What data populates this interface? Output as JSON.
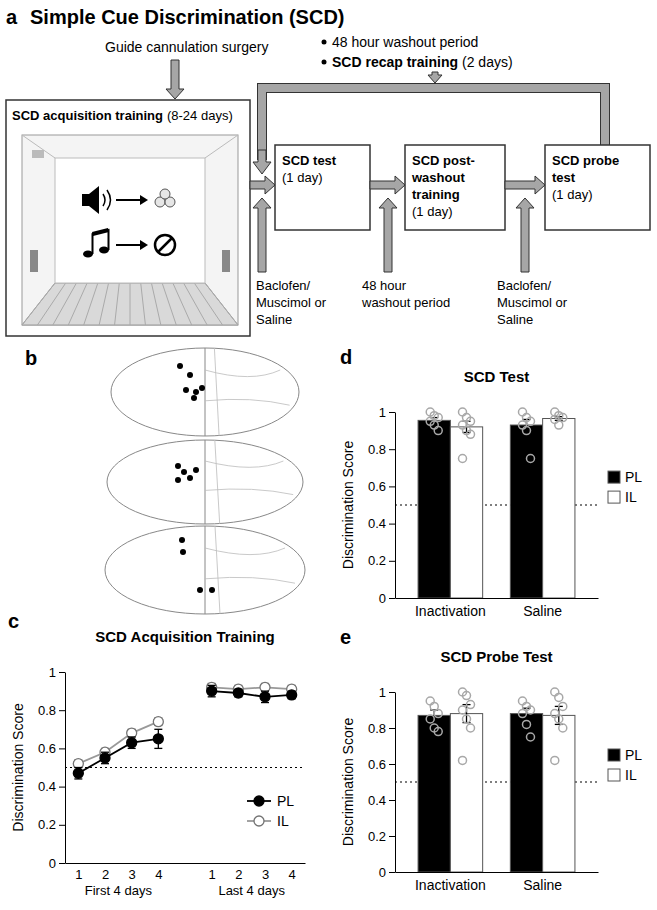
{
  "figure": {
    "panel_a": {
      "label": "a",
      "title": "Simple Cue Discrimination (SCD)",
      "surgery": "Guide cannulation surgery",
      "washout_note": "48 hour washout period",
      "recap_note": {
        "title": "SCD recap training",
        "detail": "(2 days)"
      },
      "boxes": [
        {
          "title": [
            "SCD acquisition training"
          ],
          "detail": "(8-24 days)"
        },
        {
          "title": [
            "SCD test"
          ],
          "detail": "(1 day)"
        },
        {
          "title": [
            "SCD post-",
            "washout",
            "training"
          ],
          "detail": "(1 day)"
        },
        {
          "title": [
            "SCD probe",
            "test"
          ],
          "detail": "(1 day)"
        }
      ],
      "inputs": [
        [
          "Baclofen/",
          "Muscimol or",
          "Saline"
        ],
        [
          "48 hour",
          "washout period"
        ],
        [
          "Baclofen/",
          "Muscimol or",
          "Saline"
        ]
      ]
    },
    "panel_b": {
      "label": "b"
    }
  },
  "chart_data": [
    {
      "type": "line",
      "panel_label": "c",
      "title": "SCD Acquisition Training",
      "ylabel": "Discrimination Score",
      "categories": [
        "1",
        "2",
        "3",
        "4",
        null,
        "1",
        "2",
        "3",
        "4"
      ],
      "x_groups": [
        "First 4 days",
        "Last 4 days"
      ],
      "series": [
        {
          "name": "PL",
          "color": "#000000",
          "marker": "circle",
          "values": [
            0.47,
            0.55,
            0.63,
            0.65,
            null,
            0.9,
            0.89,
            0.87,
            0.88
          ],
          "errors": [
            0.03,
            0.03,
            0.03,
            0.05,
            null,
            0.03,
            0.02,
            0.03,
            0.02
          ]
        },
        {
          "name": "IL",
          "color": "#999999",
          "marker": "circle-open",
          "values": [
            0.52,
            0.58,
            0.68,
            0.74,
            null,
            0.92,
            0.91,
            0.92,
            0.91
          ],
          "errors": [
            0.02,
            0.02,
            0.02,
            0.02,
            null,
            0.02,
            0.02,
            0.02,
            0.02
          ]
        }
      ],
      "ylim": [
        0,
        1
      ],
      "yticks": [
        0,
        0.2,
        0.4,
        0.6,
        0.8,
        1
      ],
      "hline": 0.5,
      "legend": "lower right"
    },
    {
      "type": "bar",
      "panel_label": "d",
      "title": "SCD Test",
      "ylabel": "Discrimination Score",
      "categories": [
        "Inactivation",
        "Saline"
      ],
      "series": [
        {
          "name": "PL",
          "color": "#000000",
          "values": [
            0.955,
            0.93
          ],
          "errors": [
            0.015,
            0.03
          ],
          "points": [
            [
              1.0,
              0.98,
              0.97,
              0.95,
              0.93,
              0.9
            ],
            [
              1.0,
              0.97,
              0.95,
              0.93,
              0.9,
              0.75
            ]
          ]
        },
        {
          "name": "IL",
          "color": "#ffffff",
          "values": [
            0.92,
            0.965
          ],
          "errors": [
            0.03,
            0.01
          ],
          "points": [
            [
              1.0,
              0.97,
              0.95,
              0.93,
              0.9,
              0.88,
              0.75
            ],
            [
              1.0,
              0.98,
              0.97,
              0.96,
              0.93
            ]
          ]
        }
      ],
      "ylim": [
        0,
        1
      ],
      "yticks": [
        0,
        0.2,
        0.4,
        0.6,
        0.8,
        1
      ],
      "hline": 0.5,
      "legend": "right"
    },
    {
      "type": "bar",
      "panel_label": "e",
      "title": "SCD Probe Test",
      "ylabel": "Discrimination Score",
      "categories": [
        "Inactivation",
        "Saline"
      ],
      "series": [
        {
          "name": "PL",
          "color": "#000000",
          "values": [
            0.87,
            0.88
          ],
          "errors": [
            0.03,
            0.03
          ],
          "points": [
            [
              0.95,
              0.92,
              0.88,
              0.85,
              0.8,
              0.78
            ],
            [
              0.95,
              0.92,
              0.9,
              0.88,
              0.82,
              0.75
            ]
          ]
        },
        {
          "name": "IL",
          "color": "#ffffff",
          "values": [
            0.88,
            0.87
          ],
          "errors": [
            0.05,
            0.05
          ],
          "points": [
            [
              1.0,
              0.98,
              0.93,
              0.9,
              0.85,
              0.8,
              0.62
            ],
            [
              1.0,
              0.97,
              0.92,
              0.88,
              0.85,
              0.8,
              0.62
            ]
          ]
        }
      ],
      "ylim": [
        0,
        1
      ],
      "yticks": [
        0,
        0.2,
        0.4,
        0.6,
        0.8,
        1
      ],
      "hline": 0.5,
      "legend": "right"
    }
  ]
}
